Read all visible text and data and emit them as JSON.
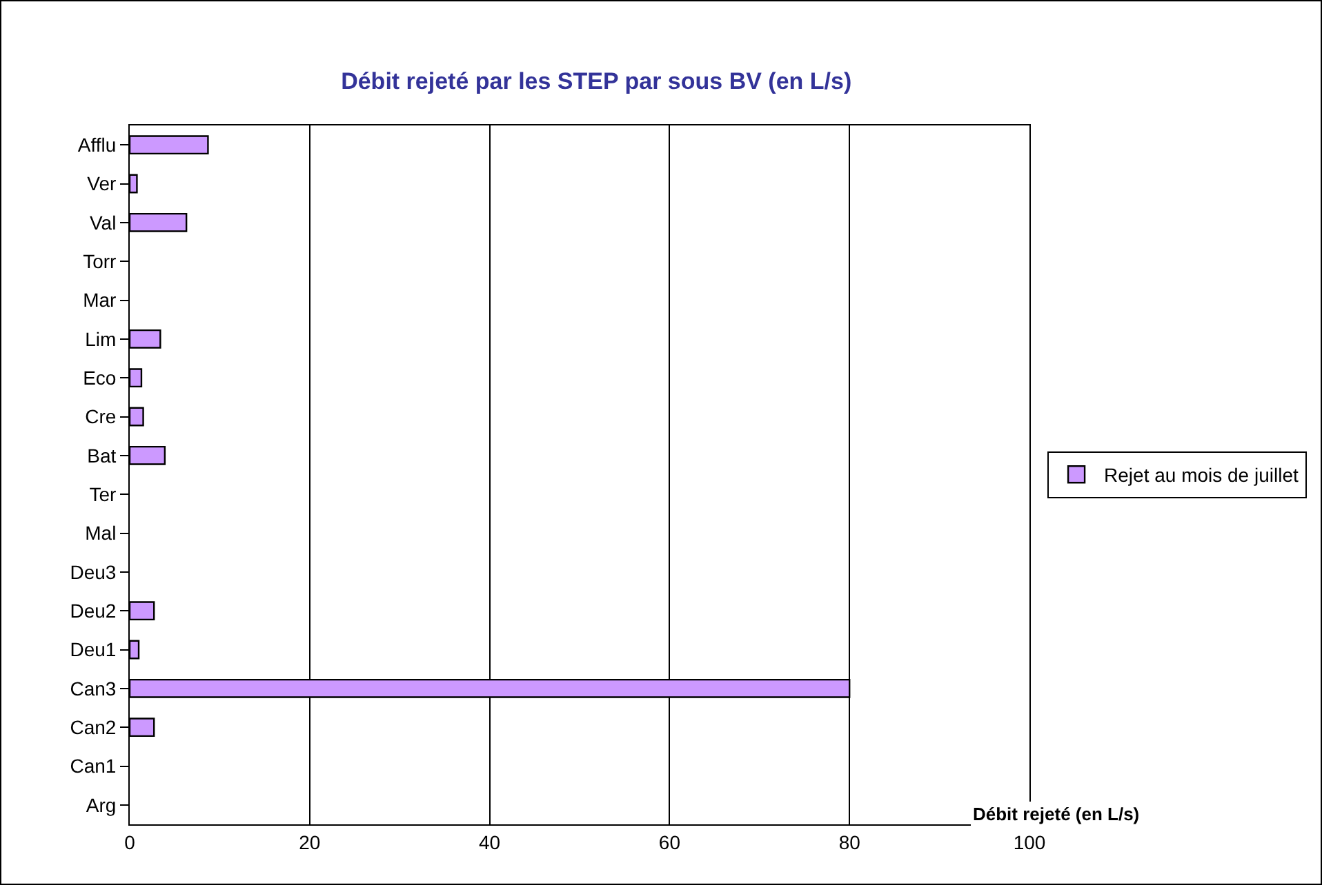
{
  "chart_data": {
    "type": "bar",
    "orientation": "horizontal",
    "title": "Débit rejeté par les STEP par sous BV (en L/s)",
    "xlabel": "Débit rejeté (en L/s)",
    "categories": [
      "Afflu",
      "Ver",
      "Val",
      "Torr",
      "Mar",
      "Lim",
      "Eco",
      "Cre",
      "Bat",
      "Ter",
      "Mal",
      "Deu3",
      "Deu2",
      "Deu1",
      "Can3",
      "Can2",
      "Can1",
      "Arg"
    ],
    "series": [
      {
        "name": "Rejet au mois de juillet",
        "color": "#cc99ff",
        "values": [
          8.7,
          0.8,
          6.3,
          0,
          0,
          3.4,
          1.3,
          1.5,
          3.9,
          0,
          0,
          0,
          2.7,
          1.0,
          80,
          2.7,
          0,
          0
        ]
      }
    ],
    "xlim": [
      0,
      100
    ],
    "xticks": [
      0,
      20,
      40,
      60,
      80,
      100
    ],
    "grid": "x",
    "legend": "right"
  }
}
